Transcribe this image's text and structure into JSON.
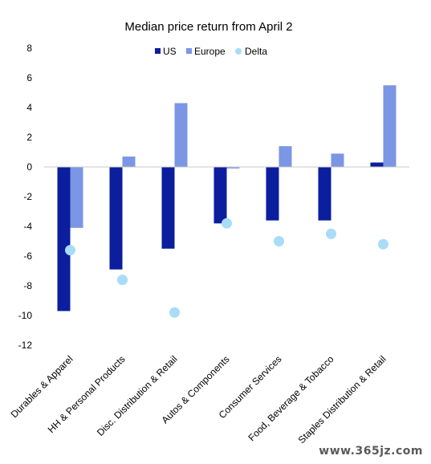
{
  "chart_data": {
    "type": "bar",
    "title": "Median price return from April 2",
    "categories": [
      "Durables & Apparel",
      "HH & Personal Products",
      "Disc. Distribution & Retail",
      "Autos & Components",
      "Consumer Services",
      "Food, Beverage & Tobacco",
      "Staples Distribution & Retail"
    ],
    "series": [
      {
        "name": "US",
        "kind": "bar",
        "color": "#0A1E9E",
        "values": [
          -9.7,
          -6.9,
          -5.5,
          -3.8,
          -3.6,
          -3.6,
          0.3
        ]
      },
      {
        "name": "Europe",
        "kind": "bar",
        "color": "#7B96E4",
        "values": [
          -4.1,
          0.7,
          4.3,
          -0.1,
          1.4,
          0.9,
          5.5
        ]
      },
      {
        "name": "Delta",
        "kind": "scatter",
        "color": "#A8DCF7",
        "values": [
          -5.6,
          -7.6,
          -9.8,
          -3.8,
          -5.0,
          -4.5,
          -5.2
        ]
      }
    ],
    "yticks": [
      "8",
      "6",
      "4",
      "2",
      "0",
      "-2",
      "-4",
      "-6",
      "-8",
      "-10",
      "-12"
    ],
    "ylim": [
      -12,
      8
    ],
    "legend_position": "top",
    "grid": false
  },
  "watermark": "www.365jz.com"
}
